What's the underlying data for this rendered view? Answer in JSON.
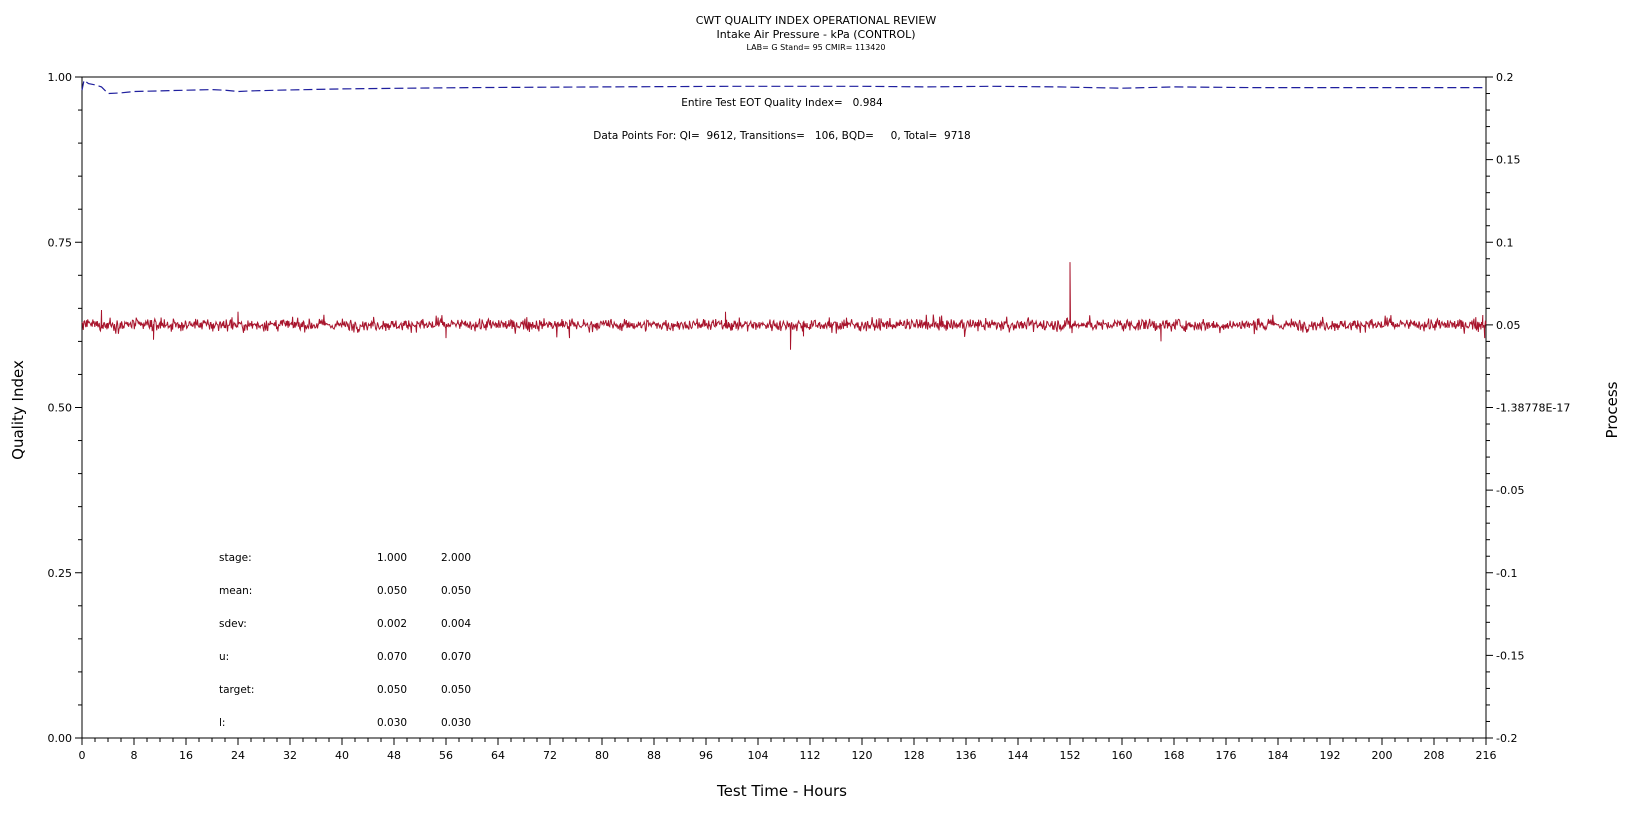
{
  "header": {
    "title": "CWT QUALITY INDEX OPERATIONAL REVIEW",
    "subtitle": "Intake Air Pressure - kPa (CONTROL)",
    "info": "LAB= G Stand= 95 CMIR= 113420"
  },
  "annotations": {
    "eot_qi": "Entire Test EOT Quality Index=   0.984",
    "data_points": "Data Points For: QI=  9612, Transitions=   106, BQD=     0, Total=  9718"
  },
  "stats_table": {
    "rows": [
      {
        "label": "stage:",
        "v1": "1.000",
        "v2": "2.000"
      },
      {
        "label": "mean:",
        "v1": "0.050",
        "v2": "0.050"
      },
      {
        "label": "sdev:",
        "v1": "0.002",
        "v2": "0.004"
      },
      {
        "label": "u:",
        "v1": "0.070",
        "v2": "0.070"
      },
      {
        "label": "target:",
        "v1": "0.050",
        "v2": "0.050"
      },
      {
        "label": "l:",
        "v1": "0.030",
        "v2": "0.030"
      }
    ]
  },
  "chart_data": {
    "type": "line",
    "xlabel": "Test Time - Hours",
    "ylabel": "Quality Index",
    "y2label": "Process",
    "xlim": [
      0,
      216
    ],
    "ylim": [
      0,
      1
    ],
    "y2lim": [
      -0.2,
      0.2
    ],
    "xticks": [
      "0",
      "8",
      "16",
      "24",
      "32",
      "40",
      "48",
      "56",
      "64",
      "72",
      "80",
      "88",
      "96",
      "104",
      "112",
      "120",
      "128",
      "136",
      "144",
      "152",
      "160",
      "168",
      "176",
      "184",
      "192",
      "200",
      "208",
      "216"
    ],
    "yticks": [
      "0.00",
      "0.25",
      "0.50",
      "0.75",
      "1.00"
    ],
    "y2ticks": [
      "-0.2",
      "-0.15",
      "-0.1",
      "-0.05",
      "-1.38778E-17",
      "0.05",
      "0.1",
      "0.15",
      "0.2"
    ],
    "colors": {
      "quality_index": "#1f1f9e",
      "process": "#a8142c"
    },
    "series": [
      {
        "axis": "left",
        "style": "dashed",
        "x": [
          0,
          0.3,
          1,
          2,
          3,
          4,
          6,
          8,
          12,
          16,
          20,
          22,
          24,
          26,
          30,
          40,
          50,
          60,
          80,
          100,
          120,
          130,
          140,
          150,
          160,
          168,
          180,
          200,
          216
        ],
        "y": [
          0.98,
          0.995,
          0.99,
          0.988,
          0.985,
          0.975,
          0.976,
          0.978,
          0.979,
          0.98,
          0.981,
          0.98,
          0.978,
          0.979,
          0.98,
          0.982,
          0.983,
          0.984,
          0.985,
          0.986,
          0.986,
          0.985,
          0.986,
          0.985,
          0.983,
          0.985,
          0.984,
          0.984,
          0.984
        ]
      },
      {
        "axis": "right",
        "style": "solid",
        "mean": 0.05,
        "noise_sdev": 0.003,
        "x_range": [
          0,
          216
        ],
        "spikes": [
          {
            "x": 3,
            "y": 0.059
          },
          {
            "x": 11,
            "y": 0.041
          },
          {
            "x": 24,
            "y": 0.058
          },
          {
            "x": 56,
            "y": 0.042
          },
          {
            "x": 75,
            "y": 0.042
          },
          {
            "x": 99,
            "y": 0.058
          },
          {
            "x": 109,
            "y": 0.035
          },
          {
            "x": 111,
            "y": 0.043
          },
          {
            "x": 152,
            "y": 0.088
          },
          {
            "x": 152.3,
            "y": 0.045
          },
          {
            "x": 166,
            "y": 0.04
          },
          {
            "x": 215.5,
            "y": 0.056
          },
          {
            "x": 215.8,
            "y": 0.042
          }
        ]
      }
    ]
  }
}
